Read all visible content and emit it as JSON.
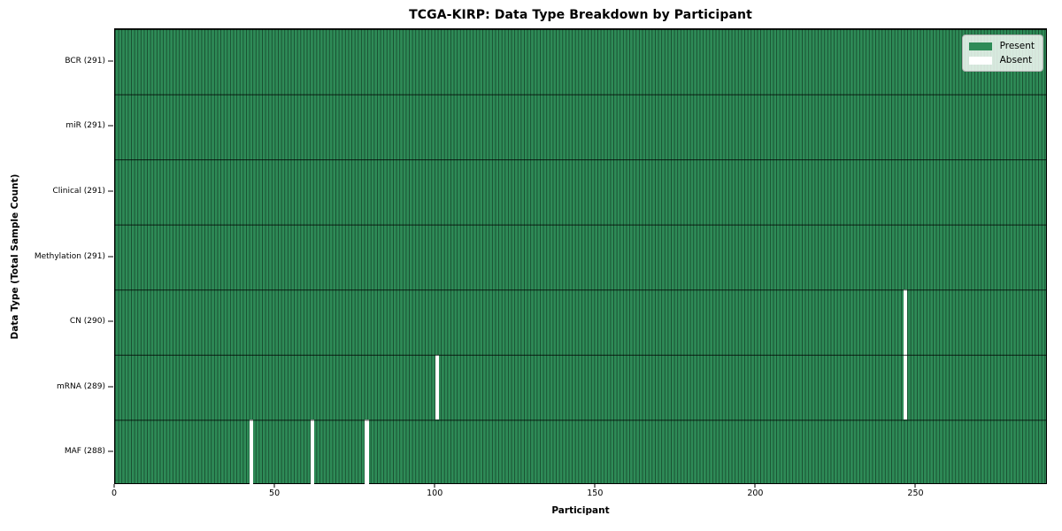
{
  "title": "TCGA-KIRP: Data Type Breakdown by Participant",
  "chart_data": {
    "type": "heatmap",
    "title": "TCGA-KIRP: Data Type Breakdown by Participant",
    "xlabel": "Participant",
    "ylabel": "Data Type (Total Sample Count)",
    "xlim": [
      0,
      291
    ],
    "x_ticks": [
      0,
      50,
      100,
      150,
      200,
      250
    ],
    "n_participants": 291,
    "grid": "off",
    "legend_position": "upper right",
    "rows": [
      {
        "label": "BCR (291)",
        "data_type": "BCR",
        "present_count": 291,
        "absent_participants": []
      },
      {
        "label": "miR (291)",
        "data_type": "miR",
        "present_count": 291,
        "absent_participants": []
      },
      {
        "label": "Clinical (291)",
        "data_type": "Clinical",
        "present_count": 291,
        "absent_participants": []
      },
      {
        "label": "Methylation (291)",
        "data_type": "Methylation",
        "present_count": 291,
        "absent_participants": []
      },
      {
        "label": "CN (290)",
        "data_type": "CN",
        "present_count": 290,
        "absent_participants": [
          246
        ]
      },
      {
        "label": "mRNA (289)",
        "data_type": "mRNA",
        "present_count": 289,
        "absent_participants": [
          100,
          246
        ]
      },
      {
        "label": "MAF (288)",
        "data_type": "MAF",
        "present_count": 288,
        "absent_participants": [
          42,
          61,
          78
        ]
      }
    ],
    "legend": [
      {
        "label": "Present",
        "color": "#2e8b57"
      },
      {
        "label": "Absent",
        "color": "#ffffff"
      }
    ],
    "colors": {
      "present": "#2e8b57",
      "absent": "#ffffff",
      "cell_edge": "#1d4c32",
      "row_divider": "#0d1f15",
      "spine": "#000000"
    }
  }
}
